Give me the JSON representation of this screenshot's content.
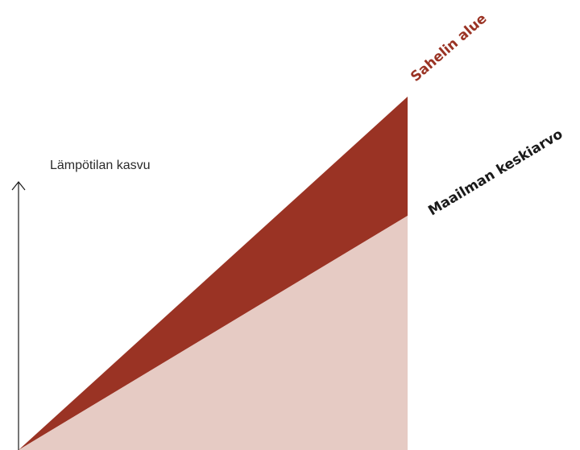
{
  "diagram": {
    "axis_label": "Lämpötilan kasvu",
    "labels": {
      "sahel": "Sahelin alue",
      "world": "Maailman keskiarvo"
    },
    "colors": {
      "sahel": "#9a3324",
      "world": "#e6cbc4",
      "axis": "#1a1a1a",
      "world_label": "#1a1a1a",
      "sahel_label": "#9a3324"
    },
    "icons": {
      "axis_arrow": "arrow-up-icon"
    }
  }
}
